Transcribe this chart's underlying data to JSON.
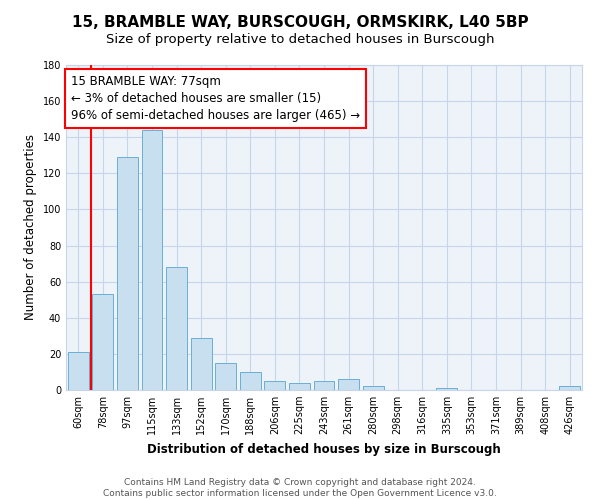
{
  "title": "15, BRAMBLE WAY, BURSCOUGH, ORMSKIRK, L40 5BP",
  "subtitle": "Size of property relative to detached houses in Burscough",
  "xlabel": "Distribution of detached houses by size in Burscough",
  "ylabel": "Number of detached properties",
  "bar_labels": [
    "60sqm",
    "78sqm",
    "97sqm",
    "115sqm",
    "133sqm",
    "152sqm",
    "170sqm",
    "188sqm",
    "206sqm",
    "225sqm",
    "243sqm",
    "261sqm",
    "280sqm",
    "298sqm",
    "316sqm",
    "335sqm",
    "353sqm",
    "371sqm",
    "389sqm",
    "408sqm",
    "426sqm"
  ],
  "bar_values": [
    21,
    53,
    129,
    144,
    68,
    29,
    15,
    10,
    5,
    4,
    5,
    6,
    2,
    0,
    0,
    1,
    0,
    0,
    0,
    0,
    2
  ],
  "bar_color": "#c8dff0",
  "bar_edge_color": "#6aafd6",
  "annotation_text_line1": "15 BRAMBLE WAY: 77sqm",
  "annotation_text_line2": "← 3% of detached houses are smaller (15)",
  "annotation_text_line3": "96% of semi-detached houses are larger (465) →",
  "ylim": [
    0,
    180
  ],
  "yticks": [
    0,
    20,
    40,
    60,
    80,
    100,
    120,
    140,
    160,
    180
  ],
  "footer_line1": "Contains HM Land Registry data © Crown copyright and database right 2024.",
  "footer_line2": "Contains public sector information licensed under the Open Government Licence v3.0.",
  "bg_color": "#ffffff",
  "plot_bg_color": "#eef3fa",
  "grid_color": "#c8d4e8",
  "title_fontsize": 11,
  "subtitle_fontsize": 9.5,
  "axis_label_fontsize": 8.5,
  "tick_fontsize": 7,
  "annotation_fontsize": 8.5,
  "footer_fontsize": 6.5
}
